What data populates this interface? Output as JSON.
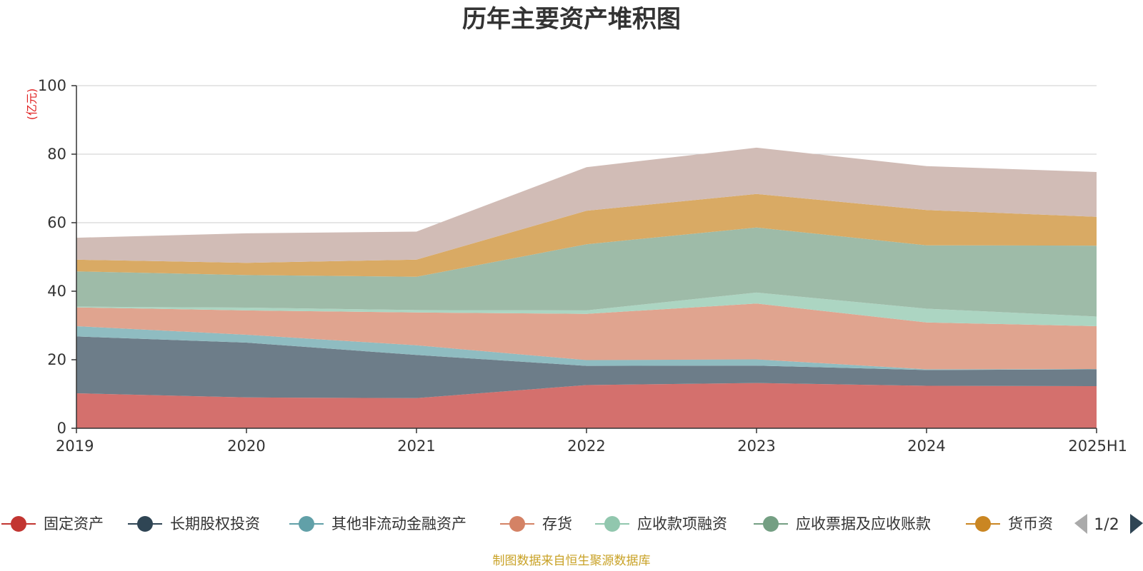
{
  "chart_data": {
    "type": "area",
    "stacked": true,
    "title": "历年主要资产堆积图",
    "unit_label": "(亿元)",
    "x": [
      "2019",
      "2020",
      "2021",
      "2022",
      "2023",
      "2024",
      "2025H1"
    ],
    "ylim": [
      0,
      100
    ],
    "yticks": [
      "0",
      "20",
      "40",
      "60",
      "80",
      "100"
    ],
    "grid": true,
    "series": [
      {
        "name": "固定资产",
        "values": [
          10.2,
          9.0,
          8.8,
          12.6,
          13.2,
          12.4,
          12.3
        ],
        "color": "#c23531",
        "fill": "#d4706d"
      },
      {
        "name": "长期股权投资",
        "values": [
          16.6,
          16.0,
          12.6,
          5.6,
          5.1,
          4.6,
          4.9
        ],
        "color": "#2f4554",
        "fill": "#6d7d89"
      },
      {
        "name": "其他非流动金融资产",
        "values": [
          3.0,
          2.3,
          2.8,
          1.7,
          1.8,
          0.2,
          0.1
        ],
        "color": "#61a0a8",
        "fill": "#8fbcc1"
      },
      {
        "name": "存货",
        "values": [
          5.5,
          7.1,
          9.6,
          13.5,
          16.3,
          13.7,
          12.5
        ],
        "color": "#d48265",
        "fill": "#e0a48f"
      },
      {
        "name": "应收款项融资",
        "values": [
          0.2,
          0.8,
          0.7,
          1.0,
          3.2,
          4.0,
          2.8
        ],
        "color": "#91c7ae",
        "fill": "#acd5c2"
      },
      {
        "name": "应收票据及应收账款",
        "values": [
          10.3,
          9.5,
          9.7,
          19.3,
          19.0,
          18.5,
          20.7
        ],
        "color": "#749f83",
        "fill": "#9ebba8"
      },
      {
        "name": "货币资金",
        "values": [
          3.4,
          3.6,
          5.0,
          9.8,
          9.8,
          10.3,
          8.4
        ],
        "color": "#ca8622",
        "fill": "#d9aa64"
      },
      {
        "name": "",
        "values": [
          6.4,
          8.6,
          8.2,
          12.7,
          13.5,
          12.8,
          13.1
        ],
        "color": "#bda29a",
        "fill": "#d1bcb6"
      }
    ],
    "legend": {
      "position": "bottom",
      "items": [
        "固定资产",
        "长期股权投资",
        "其他非流动金融资产",
        "存货",
        "应收款项融资",
        "应收票据及应收账款",
        "货币资"
      ],
      "pager": "1/2"
    },
    "source_note": "制图数据来自恒生聚源数据库"
  }
}
